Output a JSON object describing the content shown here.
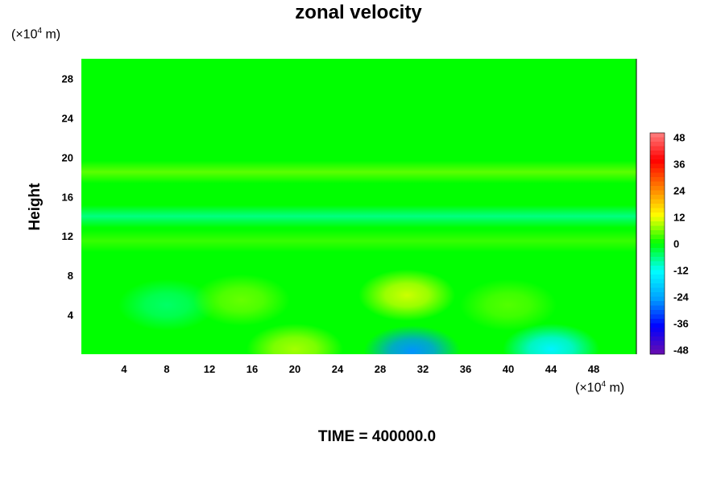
{
  "title": "zonal velocity",
  "x_unit": {
    "prefix": "(×10",
    "exp": "4",
    "suffix": " m)"
  },
  "y_unit": {
    "prefix": "(×10",
    "exp": "4",
    "suffix": " m)"
  },
  "ylabel": "Height",
  "time_label": "TIME = 400000.0",
  "chart_data": {
    "type": "heatmap",
    "title": "zonal velocity",
    "xlabel": "",
    "ylabel": "Height",
    "x_ticks": [
      4,
      8,
      12,
      16,
      20,
      24,
      28,
      32,
      36,
      40,
      44,
      48
    ],
    "y_ticks": [
      4,
      8,
      12,
      16,
      20,
      24,
      28
    ],
    "xlim": [
      0,
      52
    ],
    "ylim": [
      0,
      30
    ],
    "colorbar": {
      "ticks": [
        48,
        36,
        24,
        12,
        0,
        -12,
        -24,
        -36,
        -48
      ],
      "range": [
        -50,
        50
      ],
      "levels": 50
    },
    "background_value": 0,
    "bands": [
      {
        "y": 28,
        "value": 0
      },
      {
        "y": 18.5,
        "value": 5
      },
      {
        "y": 14,
        "value": -7
      },
      {
        "y": 11.5,
        "value": 3
      }
    ],
    "features": [
      {
        "x": 30.5,
        "y": 6,
        "value": 10
      },
      {
        "x": 8,
        "y": 5,
        "value": -5
      },
      {
        "x": 15,
        "y": 5.5,
        "value": 5
      },
      {
        "x": 20,
        "y": 0.5,
        "value": 8
      },
      {
        "x": 31,
        "y": 0.3,
        "value": -26
      },
      {
        "x": 44,
        "y": 0.5,
        "value": -14
      },
      {
        "x": 40,
        "y": 5,
        "value": 4
      }
    ],
    "annotations": [
      "TIME = 400000.0"
    ]
  },
  "colors": {
    "palette": [
      "#6a0dad",
      "#0000ff",
      "#00a0ff",
      "#00ffff",
      "#00ff00",
      "#ffff00",
      "#ff8000",
      "#ff0000",
      "#ff8080"
    ]
  }
}
